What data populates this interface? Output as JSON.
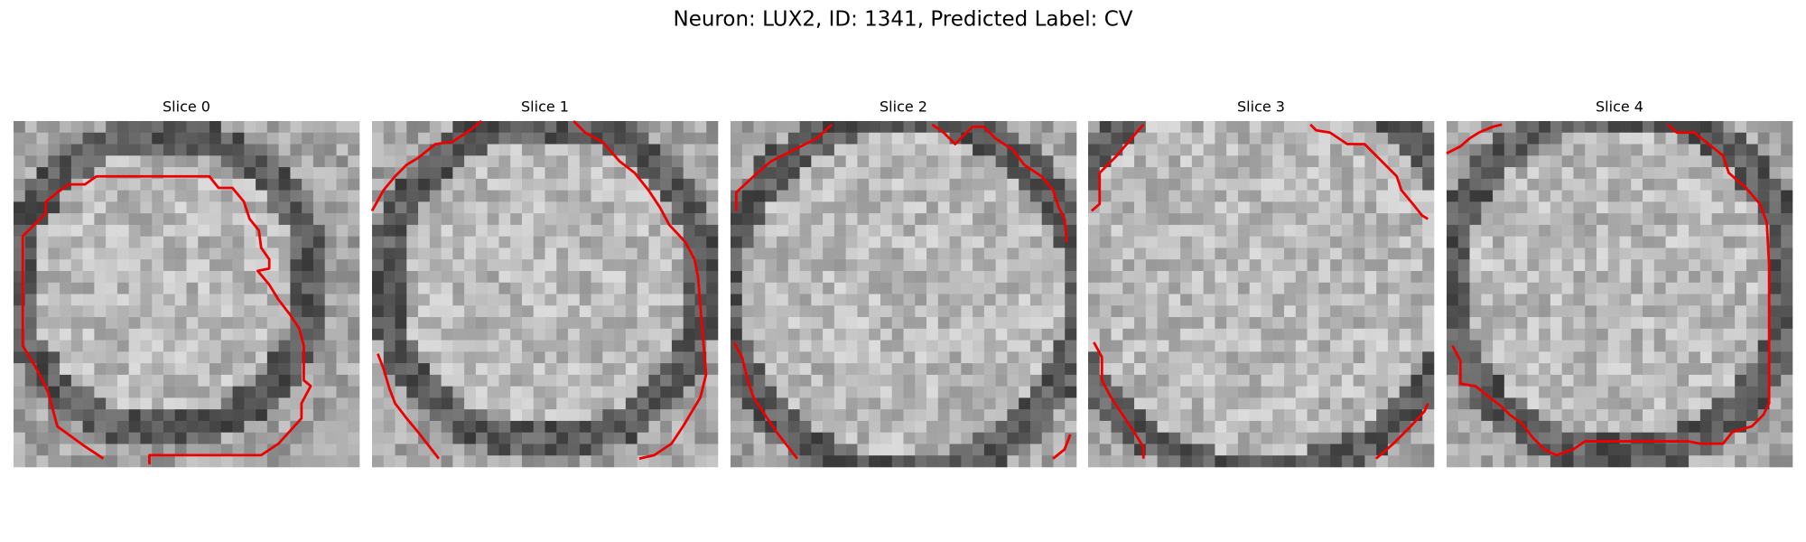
{
  "title": "Neuron: LUX2, ID: 1341, Predicted Label: CV",
  "panels": [
    {
      "title": "Slice 0"
    },
    {
      "title": "Slice 1"
    },
    {
      "title": "Slice 2"
    },
    {
      "title": "Slice 3"
    },
    {
      "title": "Slice 4"
    }
  ]
}
